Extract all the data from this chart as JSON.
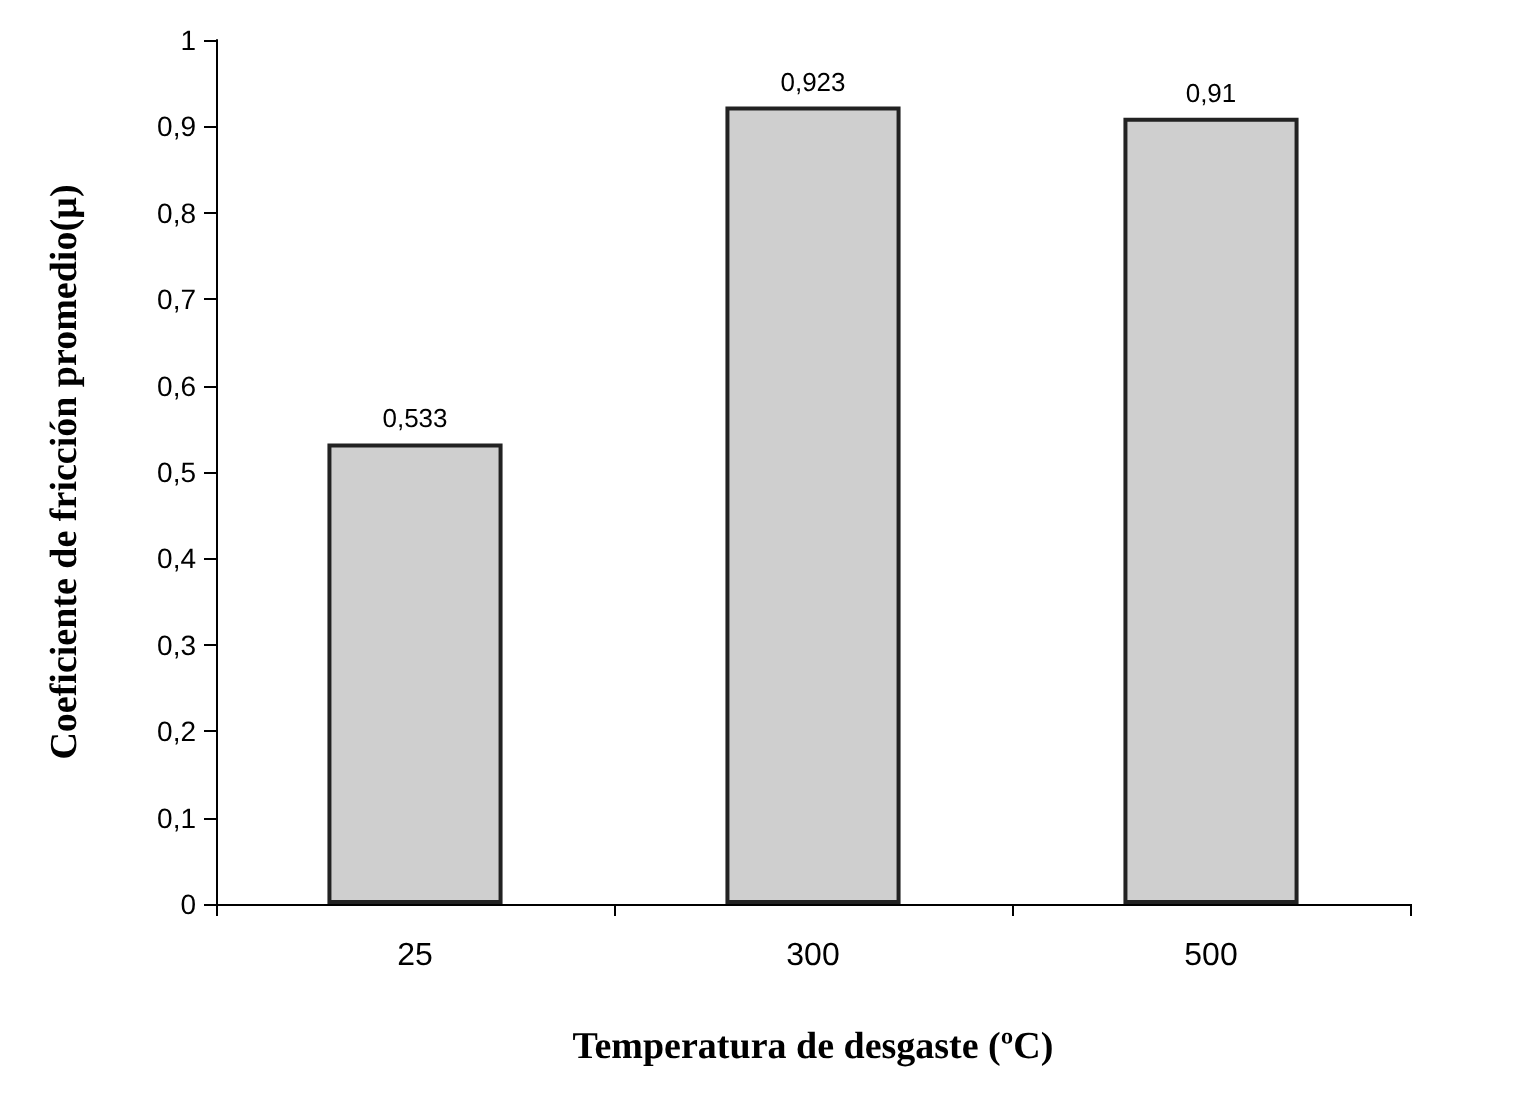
{
  "chart_data": {
    "type": "bar",
    "xlabel": "Temperatura de desgaste (ºC)",
    "ylabel": "Coeficiente de fricción promedio(µ)",
    "categories": [
      "25",
      "300",
      "500"
    ],
    "values": [
      0.533,
      0.923,
      0.91
    ],
    "value_labels": [
      "0,533",
      "0,923",
      "0,91"
    ],
    "color": "#cfcfcf",
    "ylim": [
      0,
      1
    ],
    "yticks": [
      0,
      {
        "value": 0.1,
        "label": "0,1"
      },
      {
        "value": 0.2,
        "label": "0,2"
      },
      {
        "value": 0.3,
        "label": "0,3"
      },
      {
        "value": 0.4,
        "label": "0,4"
      },
      {
        "value": 0.5,
        "label": "0,5"
      },
      {
        "value": 0.6,
        "label": "0,6"
      },
      {
        "value": 0.7,
        "label": "0,7"
      },
      {
        "value": 0.8,
        "label": "0,8"
      },
      {
        "value": 0.9,
        "label": "0,9"
      },
      1
    ],
    "grid": false
  }
}
